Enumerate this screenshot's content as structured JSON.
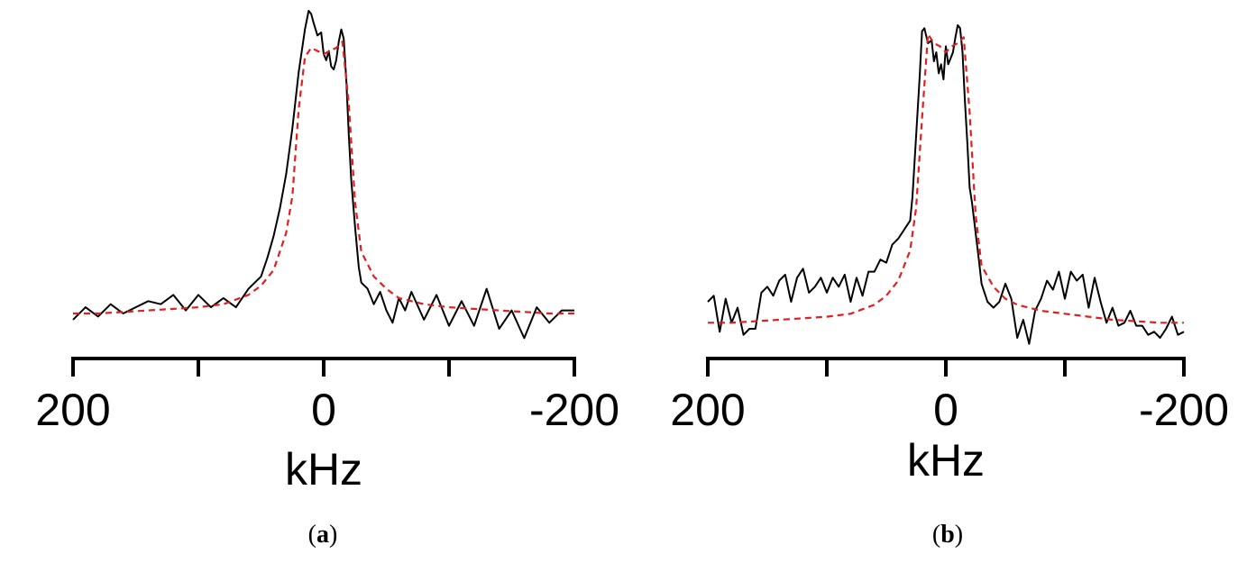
{
  "chart_data": [
    {
      "type": "line",
      "panel_label": "a",
      "xlabel": "kHz",
      "xlim": [
        200,
        -200
      ],
      "x_ticks": [
        200,
        100,
        0,
        -100,
        -200
      ],
      "x_tick_labels": [
        "200",
        "",
        "0",
        "",
        "-200"
      ],
      "ylim": [
        -0.05,
        1.0
      ],
      "grid": false,
      "series": [
        {
          "style": "solid",
          "color": "#000000",
          "x": [
            200,
            190,
            180,
            170,
            160,
            150,
            140,
            130,
            120,
            110,
            100,
            90,
            80,
            70,
            60,
            50,
            45,
            40,
            35,
            30,
            25,
            20,
            15,
            12,
            10,
            8,
            5,
            2,
            0,
            -2,
            -4,
            -6,
            -8,
            -10,
            -12,
            -14,
            -16,
            -18,
            -20,
            -22,
            -25,
            -28,
            -30,
            -35,
            -40,
            -45,
            -50,
            -55,
            -60,
            -65,
            -70,
            -80,
            -90,
            -100,
            -110,
            -120,
            -130,
            -140,
            -150,
            -160,
            -170,
            -180,
            -190,
            -200
          ],
          "y": [
            0.0,
            0.04,
            0.01,
            0.05,
            0.02,
            0.04,
            0.06,
            0.05,
            0.08,
            0.03,
            0.08,
            0.04,
            0.07,
            0.04,
            0.1,
            0.14,
            0.2,
            0.27,
            0.36,
            0.47,
            0.62,
            0.8,
            0.94,
            1.0,
            0.99,
            0.96,
            0.92,
            0.93,
            0.86,
            0.84,
            0.87,
            0.82,
            0.81,
            0.84,
            0.9,
            0.94,
            0.91,
            0.78,
            0.6,
            0.45,
            0.3,
            0.17,
            0.12,
            0.1,
            0.05,
            0.09,
            0.03,
            -0.01,
            0.07,
            0.03,
            0.09,
            0.0,
            0.08,
            -0.02,
            0.06,
            -0.02,
            0.1,
            -0.03,
            0.03,
            -0.06,
            0.04,
            -0.01,
            0.03,
            0.03
          ]
        },
        {
          "style": "dashed",
          "color": "#e02020",
          "x": [
            200,
            180,
            160,
            140,
            120,
            100,
            80,
            60,
            50,
            40,
            30,
            25,
            20,
            15,
            10,
            5,
            0,
            -5,
            -10,
            -15,
            -20,
            -25,
            -30,
            -40,
            -50,
            -60,
            -80,
            -100,
            -120,
            -140,
            -160,
            -180,
            -200
          ],
          "y": [
            0.02,
            0.02,
            0.025,
            0.03,
            0.035,
            0.04,
            0.05,
            0.08,
            0.11,
            0.16,
            0.28,
            0.4,
            0.68,
            0.85,
            0.88,
            0.87,
            0.86,
            0.87,
            0.88,
            0.9,
            0.7,
            0.38,
            0.22,
            0.14,
            0.1,
            0.07,
            0.05,
            0.04,
            0.035,
            0.03,
            0.025,
            0.02,
            0.02
          ]
        }
      ]
    },
    {
      "type": "line",
      "panel_label": "b",
      "xlabel": "kHz",
      "xlim": [
        200,
        -200
      ],
      "x_ticks": [
        200,
        100,
        0,
        -100,
        -200
      ],
      "x_tick_labels": [
        "200",
        "",
        "0",
        "",
        "-200"
      ],
      "ylim": [
        -0.1,
        1.0
      ],
      "grid": false,
      "series": [
        {
          "style": "solid",
          "color": "#000000",
          "x": [
            200,
            195,
            190,
            185,
            180,
            175,
            170,
            165,
            160,
            155,
            150,
            145,
            140,
            135,
            130,
            125,
            120,
            115,
            110,
            105,
            100,
            95,
            90,
            85,
            80,
            75,
            70,
            65,
            60,
            55,
            50,
            45,
            40,
            35,
            30,
            28,
            25,
            22,
            20,
            18,
            15,
            12,
            10,
            8,
            6,
            4,
            2,
            0,
            -2,
            -4,
            -6,
            -8,
            -10,
            -12,
            -14,
            -16,
            -18,
            -20,
            -22,
            -25,
            -28,
            -30,
            -35,
            -40,
            -45,
            -50,
            -55,
            -60,
            -65,
            -70,
            -75,
            -80,
            -85,
            -90,
            -95,
            -100,
            -105,
            -110,
            -115,
            -120,
            -125,
            -130,
            -135,
            -140,
            -145,
            -150,
            -155,
            -160,
            -165,
            -170,
            -175,
            -180,
            -185,
            -190,
            -195,
            -200
          ],
          "y": [
            0.05,
            0.07,
            -0.05,
            0.06,
            -0.02,
            0.03,
            -0.06,
            -0.04,
            -0.04,
            0.08,
            0.1,
            0.07,
            0.12,
            0.14,
            0.05,
            0.13,
            0.16,
            0.08,
            0.1,
            0.13,
            0.08,
            0.13,
            0.1,
            0.14,
            0.05,
            0.13,
            0.07,
            0.15,
            0.15,
            0.19,
            0.18,
            0.24,
            0.26,
            0.29,
            0.32,
            0.4,
            0.6,
            0.8,
            0.95,
            0.96,
            0.91,
            0.92,
            0.85,
            0.88,
            0.81,
            0.84,
            0.79,
            0.9,
            0.84,
            0.86,
            0.88,
            0.93,
            0.97,
            0.96,
            0.88,
            0.72,
            0.58,
            0.43,
            0.38,
            0.28,
            0.18,
            0.11,
            0.05,
            0.03,
            0.05,
            0.11,
            0.06,
            -0.07,
            -0.01,
            -0.09,
            0.02,
            0.06,
            0.12,
            0.09,
            0.15,
            0.06,
            0.15,
            0.12,
            0.14,
            0.03,
            0.13,
            0.05,
            -0.02,
            0.03,
            -0.03,
            -0.02,
            0.02,
            -0.03,
            -0.03,
            -0.06,
            -0.05,
            -0.07,
            -0.04,
            0.0,
            -0.06,
            -0.05
          ]
        },
        {
          "style": "dashed",
          "color": "#e02020",
          "x": [
            200,
            180,
            160,
            140,
            120,
            100,
            80,
            60,
            50,
            40,
            30,
            25,
            20,
            15,
            10,
            5,
            0,
            -5,
            -10,
            -15,
            -20,
            -25,
            -30,
            -40,
            -50,
            -60,
            -80,
            -100,
            -120,
            -140,
            -160,
            -180,
            -200
          ],
          "y": [
            -0.02,
            -0.02,
            -0.015,
            -0.01,
            -0.005,
            0.0,
            0.01,
            0.04,
            0.07,
            0.12,
            0.22,
            0.36,
            0.66,
            0.94,
            0.91,
            0.9,
            0.88,
            0.9,
            0.91,
            0.93,
            0.68,
            0.34,
            0.17,
            0.1,
            0.06,
            0.04,
            0.02,
            0.01,
            0.0,
            -0.01,
            -0.015,
            -0.02,
            -0.02
          ]
        }
      ]
    }
  ]
}
